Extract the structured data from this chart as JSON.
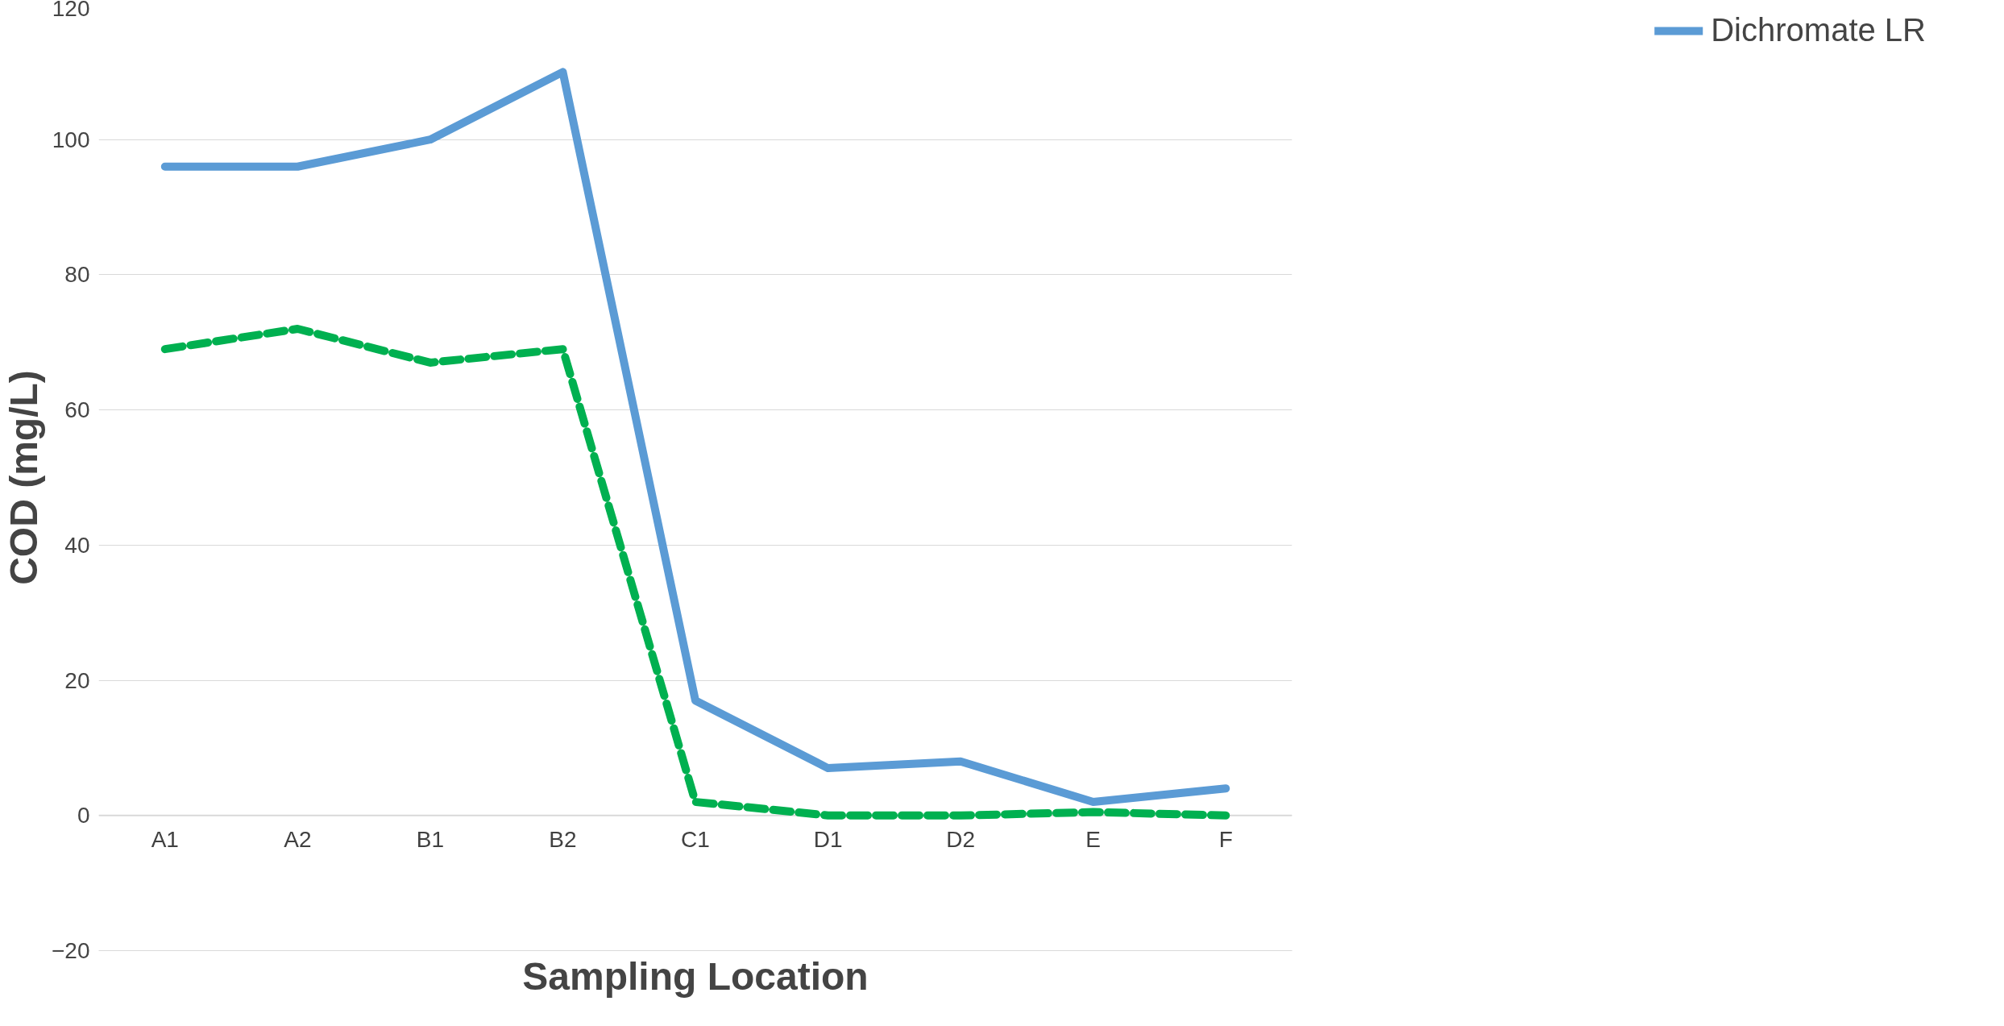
{
  "chart_data": {
    "type": "line",
    "xlabel": "Sampling Location",
    "ylabel": "COD (mg/L)",
    "categories": [
      "A1",
      "A2",
      "B1",
      "B2",
      "C1",
      "D1",
      "D2",
      "E",
      "F"
    ],
    "series": [
      {
        "color": "#00b050",
        "line_style": "dashed",
        "values": [
          69,
          72,
          67,
          69,
          2,
          0,
          0,
          0.5,
          0
        ]
      },
      {
        "name": "Dichromate LR",
        "color": "#5b9bd5",
        "line_style": "solid",
        "values": [
          96,
          96,
          100,
          110,
          17,
          7,
          8,
          2,
          4
        ]
      }
    ],
    "ylim": [
      -20,
      120
    ],
    "yticks": [
      -20,
      0,
      20,
      40,
      60,
      80,
      100,
      120
    ],
    "grid": "y",
    "legend": "right"
  }
}
